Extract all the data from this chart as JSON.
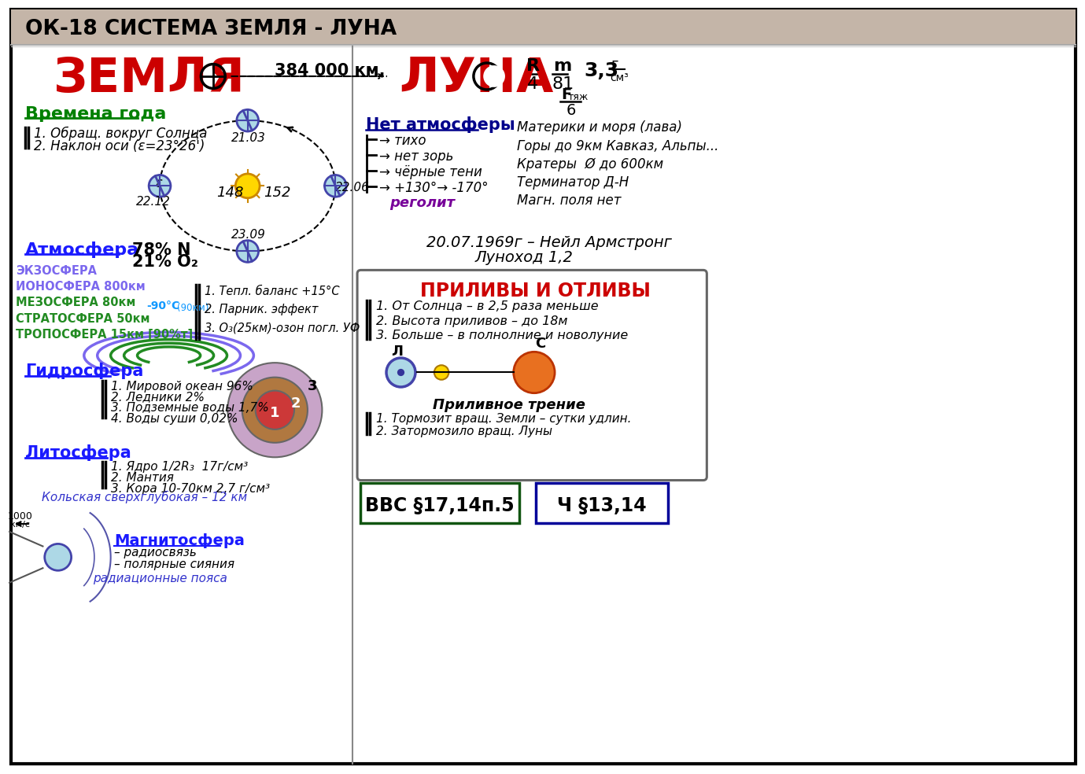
{
  "title": "ОК-18 СИСТЕМА ЗЕМЛЯ - ЛУНА",
  "title_bg": "#c4b5a8",
  "bg_color": "#ffffff",
  "zemlja_label": "ЗЕМЛЯ",
  "luna_label": "ЛУНА",
  "distance": "384 000 км.",
  "vremena_title": "Времена года",
  "vremena_items": [
    "1. Обращ. вокруг Солнца",
    "2. Наклон оси (ε=23°26')"
  ],
  "atmosfera_title": "Атмосфера",
  "atm_n": "78% N",
  "atm_o": "21% O₂",
  "layer_names": [
    "ЭКЗОСФЕРА",
    "ИОНОСФЕРА 800км",
    "МЕЗОСФЕРА 80км",
    "СТРАТОСФЕРА 50км",
    "ТРОПОСФЕРА 15км [90%т]"
  ],
  "layer_colors": [
    "#7b68ee",
    "#7b68ee",
    "#228b22",
    "#228b22",
    "#228b22"
  ],
  "atm_notes": [
    "1. Тепл. баланс +15°С",
    "2. Парник. эффект",
    "3. О₃(25км)-озон погл. УФ"
  ],
  "minus90": "-90°С",
  "minus90b": "(90км)",
  "gidrosfera_title": "Гидросфера",
  "gidrosfera_items": [
    "1. Мировой океан 96%",
    "2. Ледники 2%",
    "3. Подземные воды 1,7%",
    "4. Воды суши 0,02%"
  ],
  "litosfera_title": "Литосфера",
  "litosfera_items": [
    "1. Ядро 1/2R₃  17г/см³",
    "2. Мантия",
    "3. Кора 10-70км 2,7 г/см³"
  ],
  "kolskaya": "Кольская сверхглубокая – 12 км",
  "magnitosfera_title": "Магнитосфера",
  "magnitosfera_items": [
    "– радиосвязь",
    "– полярные сияния"
  ],
  "magnitosfera_rad": "радиационные пояса",
  "speed_label": "1000",
  "speed_unit": "км/с",
  "luna_no_atm": "Нет атмосферы",
  "luna_items": [
    "→ тихо",
    "→ нет зорь",
    "→ чёрные тени",
    "→ +130°→ -170°"
  ],
  "luna_regolit": "реголит",
  "luna_right_items": [
    "Материки и моря (лава)",
    "Горы до 9км Кавказ, Альпы...",
    "Кратеры  Ø до 600км",
    "Терминатор Д-Н",
    "Магн. поля нет"
  ],
  "luna_history": "20.07.1969г – Нейл Армстронг",
  "luna_lunokhod": "Луноход 1,2",
  "prilivy_title": "ПРИЛИВЫ И ОТЛИВЫ",
  "prilivy_items": [
    "1. От Солнца – в 2,5 раза меньше",
    "2. Высота приливов – до 18м",
    "3. Больше – в полнолние и новолуние"
  ],
  "prilivnoe_title": "Приливное трение",
  "prilivnoe_items": [
    "1. Тормозит вращ. Земли – сутки удлин.",
    "2. Затормозило вращ. Луны"
  ],
  "bvc_text": "ВВС §17,14п.5",
  "ch_text": "Ч §13,14",
  "color_red": "#cc0000",
  "color_green": "#008000",
  "color_blue": "#1a1aff",
  "color_dark_blue": "#00008b",
  "color_black": "#000000",
  "color_light_blue": "#add8e6",
  "color_purple": "#7b68ee",
  "color_dark_green": "#228b22",
  "color_orange": "#e87020",
  "color_yellow": "#ffd700",
  "color_title_bg": "#c4b5a8"
}
